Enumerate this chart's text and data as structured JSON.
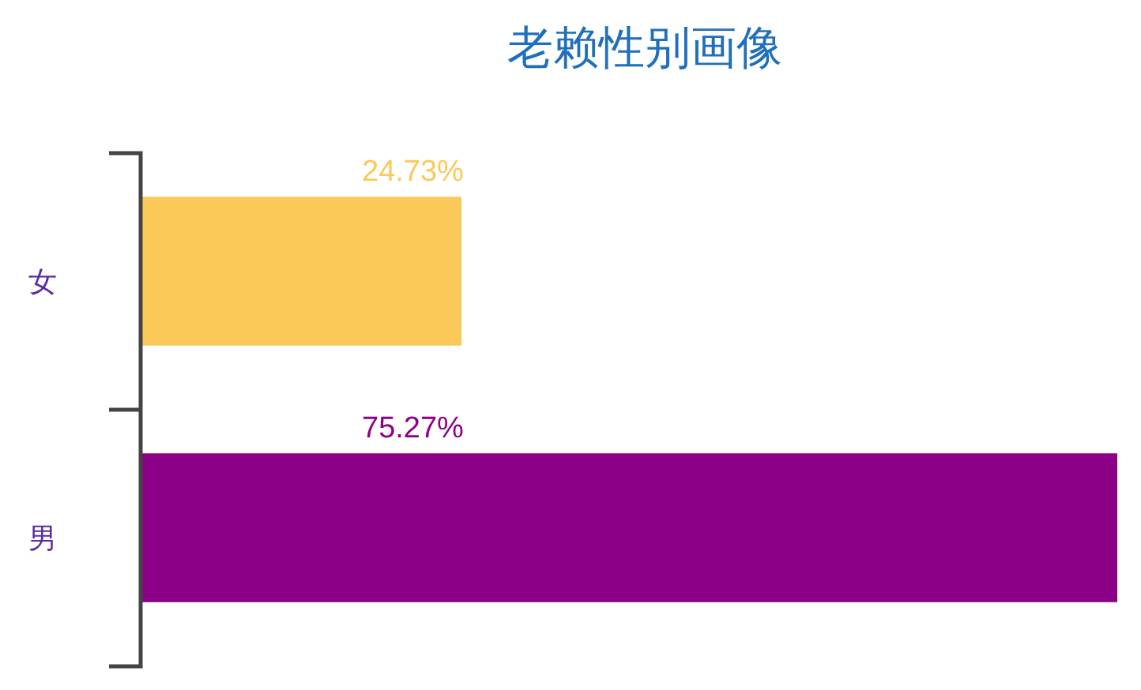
{
  "chart_data": {
    "type": "bar",
    "title": "老赖性别画像",
    "orientation": "horizontal",
    "categories": [
      "女",
      "男"
    ],
    "values": [
      24.73,
      75.27
    ],
    "colors": [
      "#fbc85a",
      "#8b0086"
    ],
    "value_labels": [
      "24.73%",
      "75.27%"
    ]
  }
}
